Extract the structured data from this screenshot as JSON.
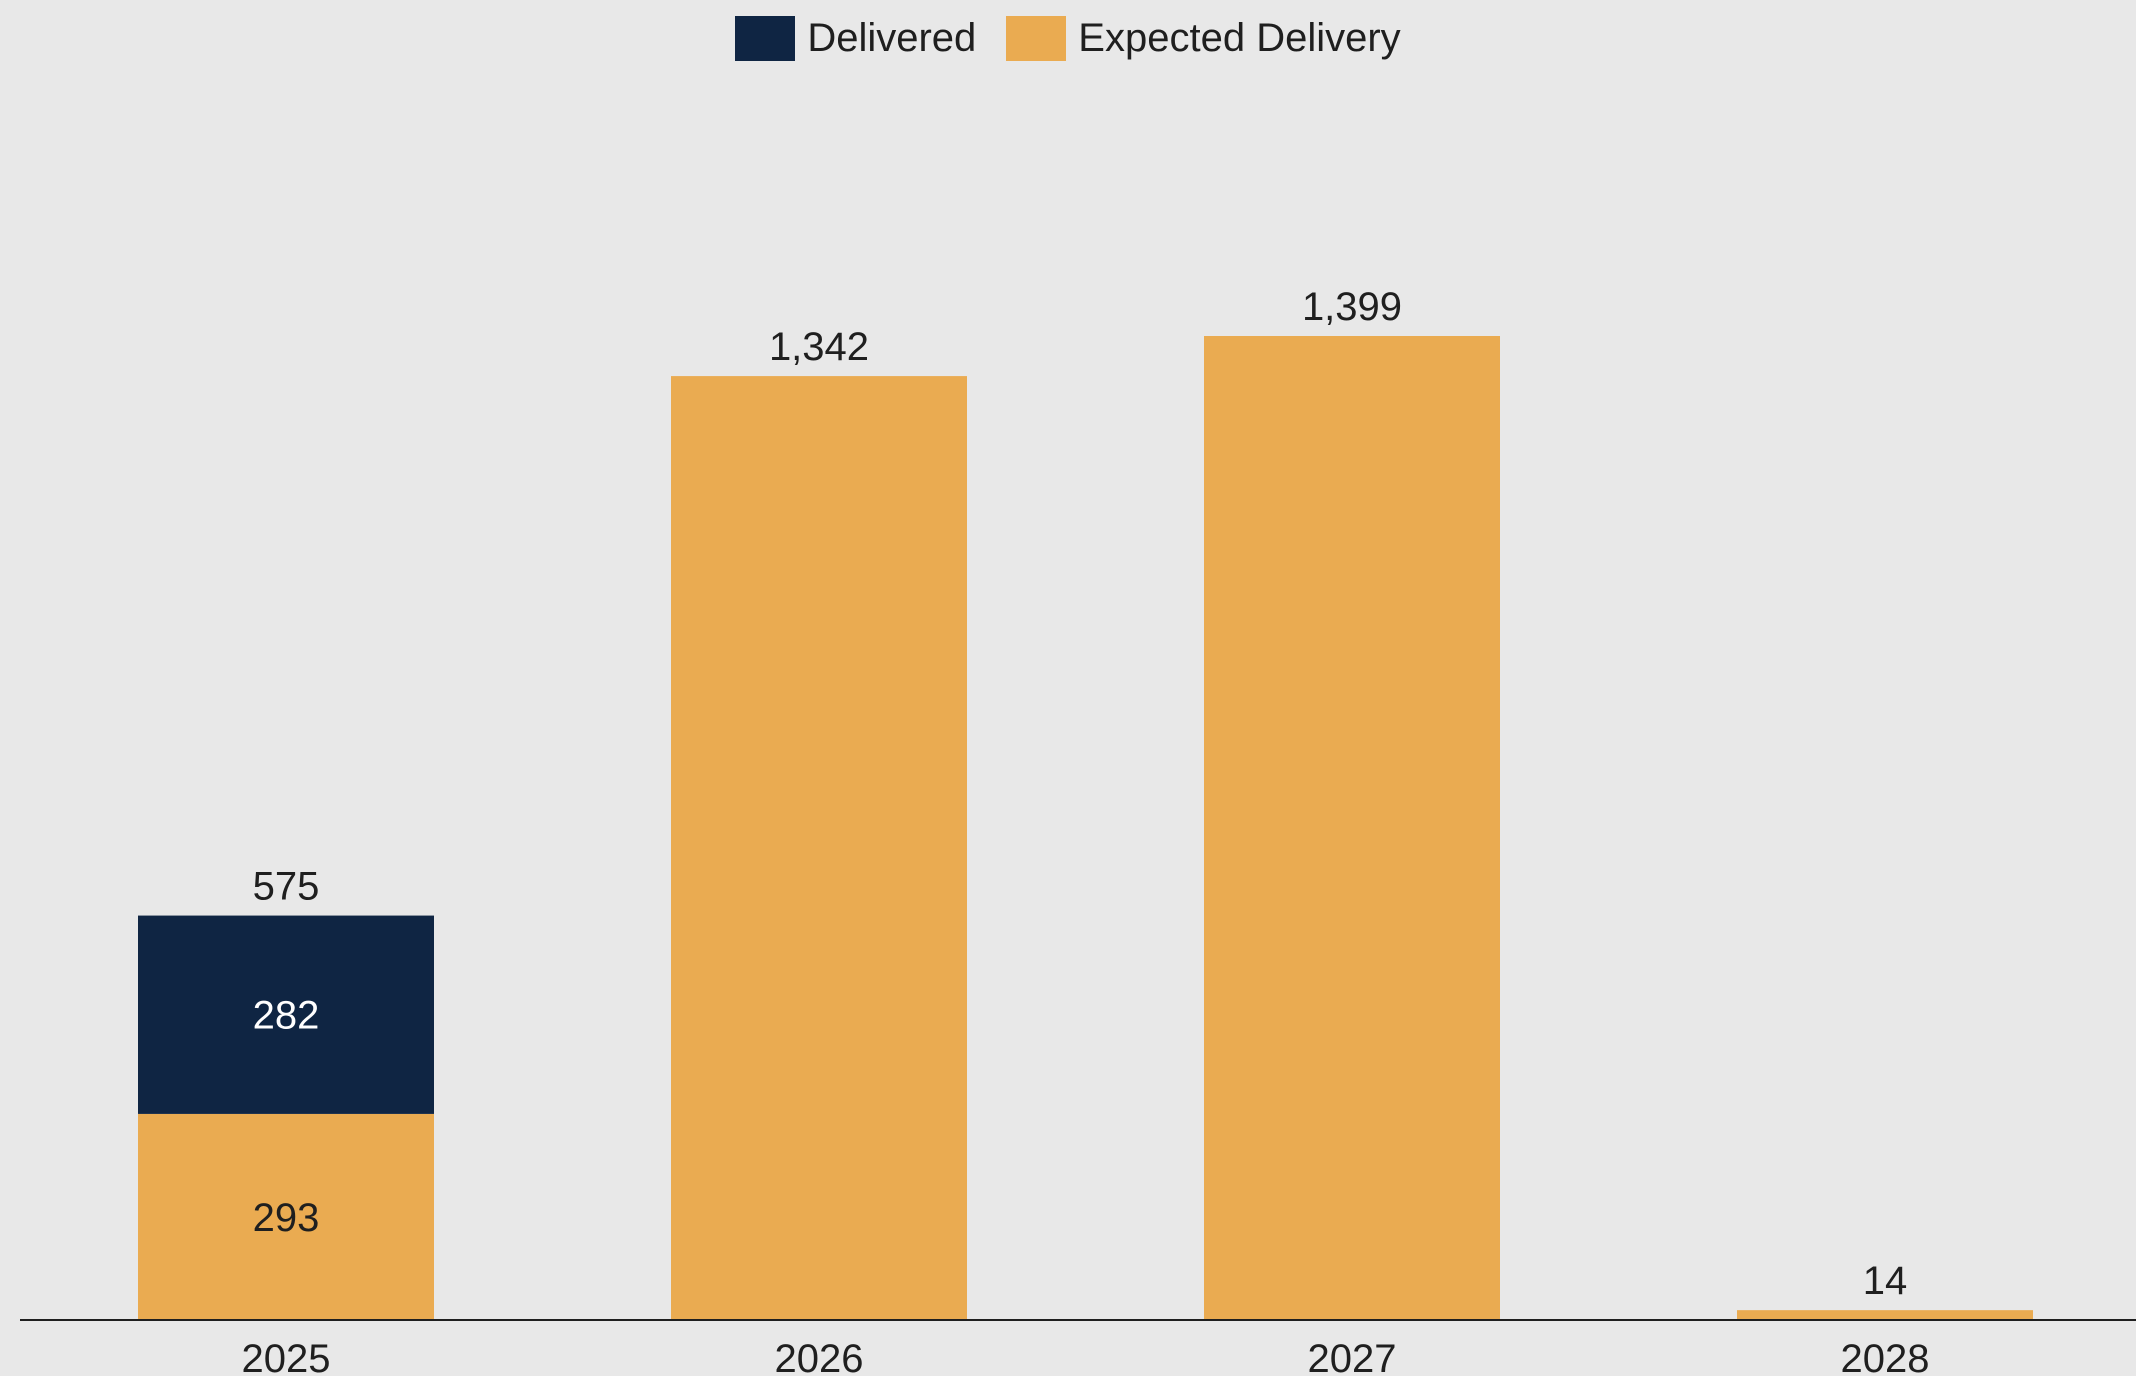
{
  "chart_data": {
    "type": "bar",
    "stacked": true,
    "categories": [
      "2025",
      "2026",
      "2027",
      "2028"
    ],
    "series": [
      {
        "name": "Expected Delivery",
        "color": "#EAAB51",
        "values": [
          293,
          1342,
          1399,
          14
        ],
        "value_labels": [
          "293",
          null,
          null,
          null
        ]
      },
      {
        "name": "Delivered",
        "color": "#0F2543",
        "values": [
          282,
          0,
          0,
          0
        ],
        "value_labels": [
          "282",
          null,
          null,
          null
        ]
      }
    ],
    "totals": [
      575,
      1342,
      1399,
      14
    ],
    "total_labels": [
      "575",
      "1,342",
      "1,399",
      "14"
    ],
    "legend": [
      {
        "name": "Delivered",
        "color": "#0F2543"
      },
      {
        "name": "Expected Delivery",
        "color": "#EAAB51"
      }
    ],
    "legend_position": "top-center",
    "ylim": [
      0,
      1399
    ],
    "grid": false,
    "y_axis_shown": false,
    "title": "",
    "xlabel": "",
    "ylabel": "",
    "colors": {
      "background": "#E8E8E8",
      "text": "#1F1F1F",
      "inner_label_light": "#FFFFFF",
      "axis_line": "#1F1F1F"
    }
  }
}
